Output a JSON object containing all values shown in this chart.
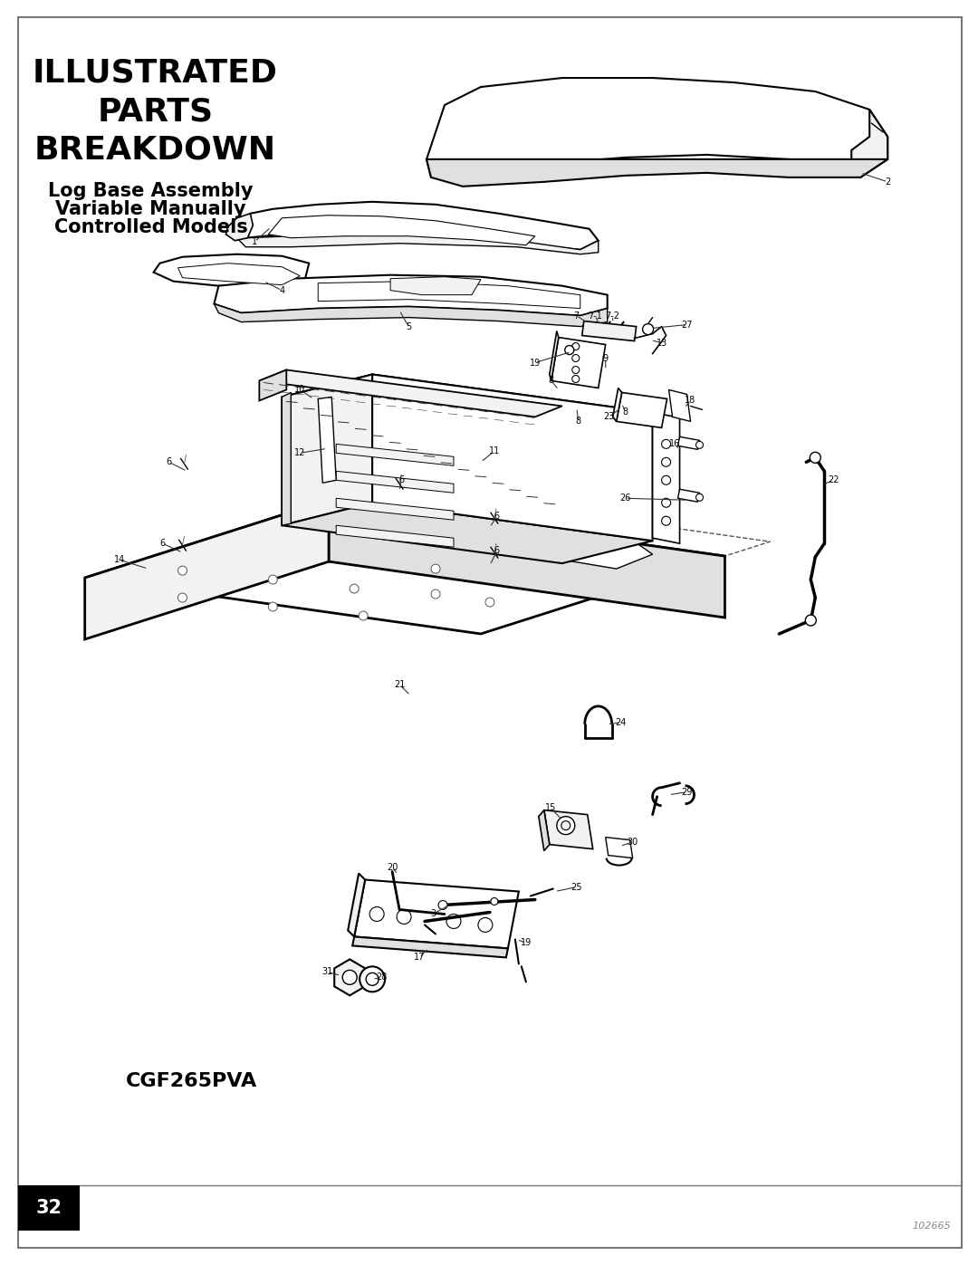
{
  "page_title_line1": "ILLUSTRATED",
  "page_title_line2": "PARTS",
  "page_title_line3": "BREAKDOWN",
  "subtitle_line1": "Log Base Assembly",
  "subtitle_line2": "Variable Manually",
  "subtitle_line3": "Controlled Models",
  "model_label": "CGF265PVA",
  "page_number": "32",
  "doc_number": "102665",
  "bg": "#ffffff",
  "border_color": "#777777",
  "black": "#000000",
  "gray_line": "#888888",
  "fill_white": "#ffffff",
  "fill_light": "#f2f2f2",
  "fill_mid": "#e0e0e0",
  "fill_dark": "#cccccc"
}
